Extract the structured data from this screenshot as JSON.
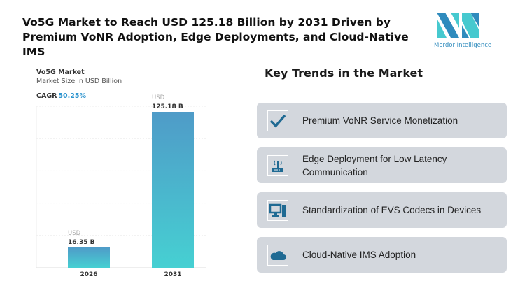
{
  "title": "Vo5G Market to Reach USD 125.18 Billion by 2031 Driven by Premium VoNR Adoption, Edge Deployments, and Cloud-Native IMS",
  "logo": {
    "text": "Mordor Intelligence"
  },
  "chart_data": {
    "type": "bar",
    "title": "Vo5G Market",
    "subtitle": "Market Size in USD Billion",
    "cagr_label": "CAGR",
    "cagr_value": "50.25%",
    "categories": [
      "2026",
      "2031"
    ],
    "values": [
      16.35,
      125.18
    ],
    "value_labels": [
      "16.35 B",
      "125.18 B"
    ],
    "unit_label": "USD",
    "ylim": [
      0,
      130
    ],
    "grid": true,
    "colors": {
      "bar_top": "#4f9bc8",
      "bar_bottom": "#46d0d2",
      "cagr": "#2f95cf"
    }
  },
  "trends": {
    "heading": "Key Trends in the Market",
    "items": [
      {
        "label": "Premium VoNR Service Monetization",
        "icon": "checkmark-icon"
      },
      {
        "label": "Edge Deployment for Low Latency Communication",
        "icon": "router-icon"
      },
      {
        "label": "Standardization of EVS Codecs in Devices",
        "icon": "computer-icon"
      },
      {
        "label": "Cloud-Native IMS Adoption",
        "icon": "cloud-icon"
      }
    ],
    "icon_color": "#1f6a93",
    "card_color": "#d3d7dd"
  }
}
